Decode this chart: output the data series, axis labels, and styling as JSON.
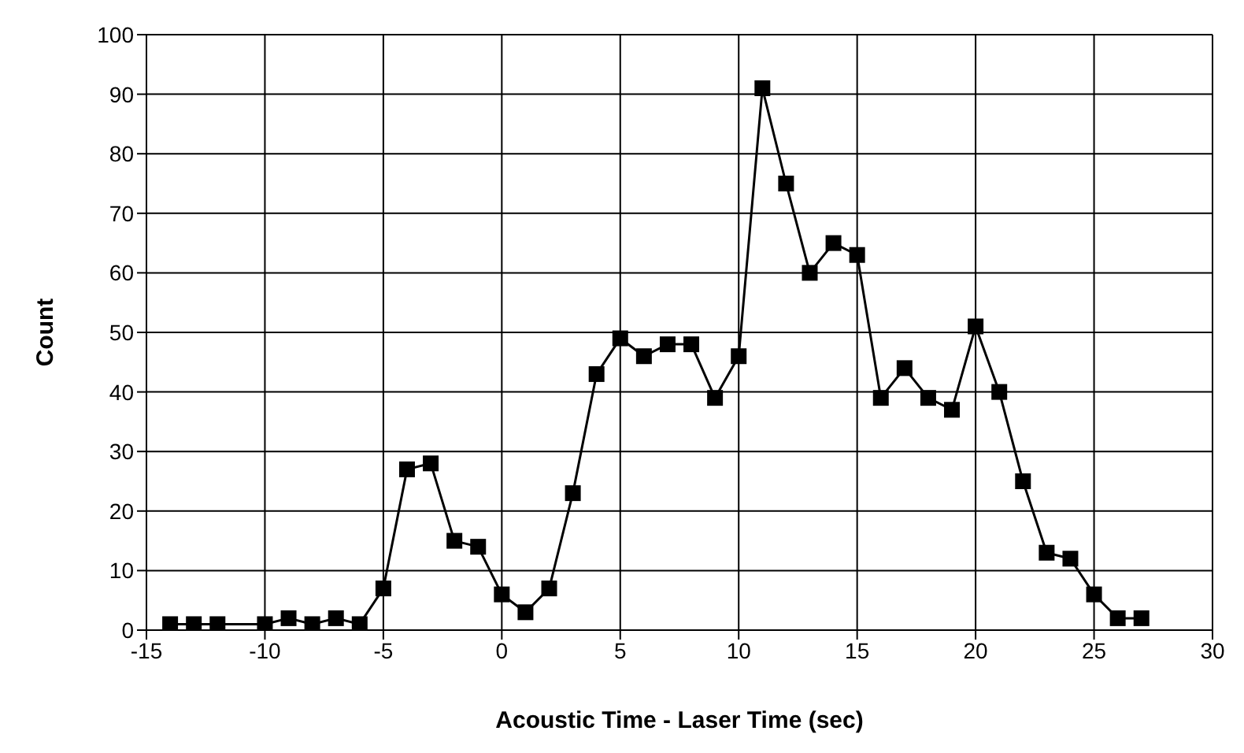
{
  "chart_data": {
    "type": "line",
    "xlabel": "Acoustic Time - Laser Time (sec)",
    "ylabel": "Count",
    "x": [
      -14,
      -13,
      -12,
      -10,
      -9,
      -8,
      -7,
      -6,
      -5,
      -4,
      -3,
      -2,
      -1,
      0,
      1,
      2,
      3,
      4,
      5,
      6,
      7,
      8,
      9,
      10,
      11,
      12,
      13,
      14,
      15,
      16,
      17,
      18,
      19,
      20,
      21,
      22,
      23,
      24,
      25,
      26,
      27
    ],
    "series": [
      {
        "color": "#000000",
        "values": [
          1,
          1,
          1,
          1,
          2,
          1,
          2,
          1,
          7,
          27,
          28,
          15,
          14,
          6,
          3,
          7,
          23,
          43,
          49,
          46,
          48,
          48,
          39,
          46,
          91,
          75,
          60,
          65,
          63,
          39,
          44,
          39,
          37,
          51,
          40,
          25,
          13,
          12,
          6,
          2,
          2
        ]
      }
    ],
    "xlim": [
      -15,
      30
    ],
    "xticks": [
      -15,
      -10,
      -5,
      0,
      5,
      10,
      15,
      20,
      25,
      30
    ],
    "ylim": [
      0,
      100
    ],
    "yticks": [
      0,
      10,
      20,
      30,
      40,
      50,
      60,
      70,
      80,
      90,
      100
    ],
    "grid": true,
    "legend": false,
    "marker": "square",
    "line_style": "solid"
  }
}
